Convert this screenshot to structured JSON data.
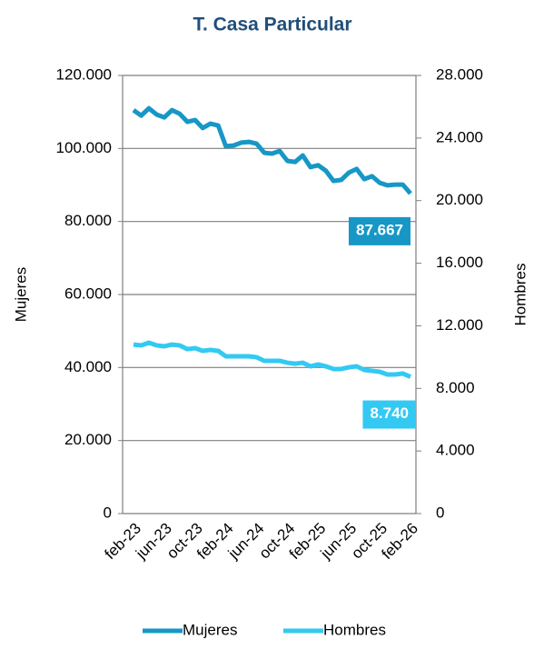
{
  "chart_data": {
    "type": "line",
    "title": "T. Casa Particular",
    "categories": [
      "feb-23",
      null,
      null,
      null,
      "jun-23",
      null,
      null,
      null,
      "oct-23",
      null,
      null,
      null,
      "feb-24",
      null,
      null,
      null,
      "jun-24",
      null,
      null,
      null,
      "oct-24",
      null,
      null,
      null,
      "feb-25",
      null,
      null,
      null,
      "jun-25",
      null,
      null,
      null,
      "oct-25",
      null,
      null,
      null,
      "feb-26"
    ],
    "y_label": "Mujeres",
    "y2_label": "Hombres",
    "ylim": [
      0,
      120000
    ],
    "yticks": [
      0,
      {
        "value": 20000,
        "label": "20.000"
      },
      {
        "value": 40000,
        "label": "40.000"
      },
      {
        "value": 60000,
        "label": "60.000"
      },
      {
        "value": 80000,
        "label": "80.000"
      },
      {
        "value": 100000,
        "label": "100.000"
      },
      {
        "value": 120000,
        "label": "120.000"
      }
    ],
    "y2lim": [
      0,
      28000
    ],
    "y2ticks": [
      0,
      {
        "value": 4000,
        "label": "4.000"
      },
      {
        "value": 8000,
        "label": "8.000"
      },
      {
        "value": 12000,
        "label": "12.000"
      },
      {
        "value": 16000,
        "label": "16.000"
      },
      {
        "value": 20000,
        "label": "20.000"
      },
      {
        "value": 24000,
        "label": "24.000"
      },
      {
        "value": 28000,
        "label": "28.000"
      }
    ],
    "grid": true,
    "legend": "bottom",
    "series": [
      {
        "name": "Mujeres",
        "color": "#1797c6",
        "axis": "y",
        "values": [
          110500,
          109000,
          111000,
          109300,
          108500,
          110500,
          109500,
          107300,
          107800,
          105600,
          106800,
          106300,
          100600,
          100800,
          101600,
          101800,
          101300,
          98800,
          98600,
          99300,
          96600,
          96300,
          98100,
          94900,
          95400,
          93900,
          91100,
          91400,
          93400,
          94400,
          91600,
          92400,
          90600,
          89900,
          90100,
          90100,
          87667
        ],
        "value_labels": [
          null,
          null,
          null,
          null,
          null,
          null,
          null,
          null,
          null,
          null,
          null,
          null,
          null,
          null,
          null,
          null,
          null,
          null,
          null,
          null,
          null,
          null,
          null,
          null,
          null,
          null,
          null,
          null,
          null,
          null,
          null,
          null,
          null,
          null,
          null,
          null,
          "87.667"
        ]
      },
      {
        "name": "Hombres",
        "color": "#33c9f3",
        "axis": "y2",
        "values": [
          10800,
          10750,
          10920,
          10750,
          10690,
          10800,
          10750,
          10510,
          10570,
          10400,
          10460,
          10400,
          10050,
          10050,
          10050,
          10050,
          9990,
          9760,
          9760,
          9760,
          9640,
          9580,
          9640,
          9410,
          9530,
          9410,
          9240,
          9240,
          9350,
          9410,
          9180,
          9120,
          9060,
          8890,
          8890,
          8950,
          8740
        ],
        "value_labels": [
          null,
          null,
          null,
          null,
          null,
          null,
          null,
          null,
          null,
          null,
          null,
          null,
          null,
          null,
          null,
          null,
          null,
          null,
          null,
          null,
          null,
          null,
          null,
          null,
          null,
          null,
          null,
          null,
          null,
          null,
          null,
          null,
          null,
          null,
          null,
          null,
          "8.740"
        ]
      }
    ]
  }
}
